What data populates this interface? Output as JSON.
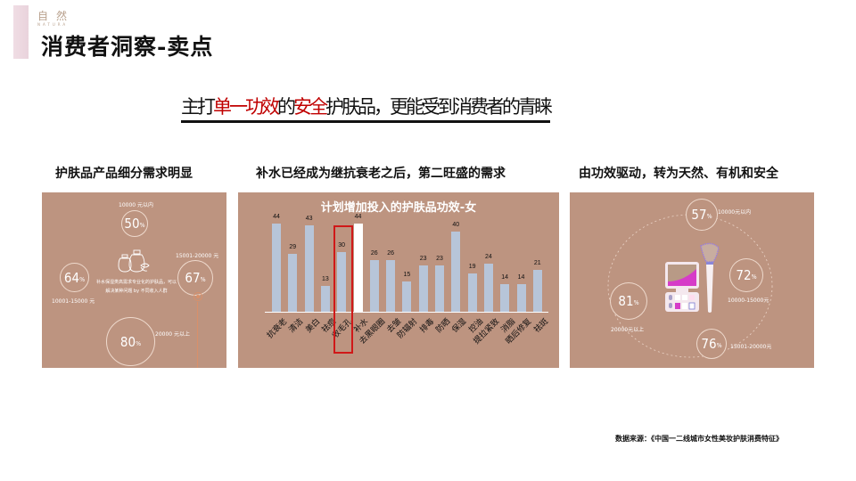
{
  "brand": {
    "cn": "自然",
    "en": "NATURA"
  },
  "page": {
    "title": "消费者洞察-卖点"
  },
  "headline": {
    "part1": "主打",
    "red1": "单一功效",
    "part2": "的",
    "red2": "安全",
    "part3": "护肤品，更能受到消费者的青睐"
  },
  "sections": [
    {
      "title": "护肤品产品细分需求明显"
    },
    {
      "title": "补水已经成为继抗衰老之后，第二旺盛的需求"
    },
    {
      "title": "由功效驱动，转为天然、有机和安全"
    }
  ],
  "panel1": {
    "center_text": "补水保湿类高需求专业化的护肤品，可以解决某种问题 by 不同收入人群",
    "items": [
      {
        "value": "50",
        "unit": "%",
        "label": "10000 元以内"
      },
      {
        "value": "64",
        "unit": "%",
        "label": "10001-15000 元"
      },
      {
        "value": "67",
        "unit": "%",
        "label": "15001-20000 元"
      },
      {
        "value": "80",
        "unit": "%",
        "label": "20000 元以上"
      }
    ]
  },
  "panel3": {
    "items": [
      {
        "value": "57",
        "unit": "%",
        "label": "10000元以内"
      },
      {
        "value": "72",
        "unit": "%",
        "label": "10000-15000元"
      },
      {
        "value": "76",
        "unit": "%",
        "label": "15001-20000元"
      },
      {
        "value": "81",
        "unit": "%",
        "label": "20000元以上"
      }
    ]
  },
  "chart_data": {
    "type": "bar",
    "title": "计划增加投入的护肤品功效-女",
    "categories": [
      "抗衰老",
      "清洁",
      "美白",
      "祛痘",
      "收毛孔",
      "补水",
      "去黑眼圈",
      "去皱",
      "防辐射",
      "排毒",
      "防晒",
      "保湿",
      "控油",
      "提拉紧致",
      "消脂",
      "晒后修复",
      "祛斑"
    ],
    "values": [
      44,
      29,
      43,
      13,
      30,
      44,
      26,
      26,
      15,
      23,
      23,
      40,
      19,
      24,
      14,
      14,
      21
    ],
    "highlighted": "补水",
    "xlabel": "",
    "ylabel": "",
    "ylim": [
      0,
      50
    ],
    "grid": false,
    "colors": {
      "bar": "#b7c5d9",
      "highlight": "#ffffff",
      "background": "#bd9480",
      "box": "#d01818"
    }
  },
  "footer": {
    "source": "数据来源：《中国一二线城市女性美妆护肤消费特征》"
  }
}
